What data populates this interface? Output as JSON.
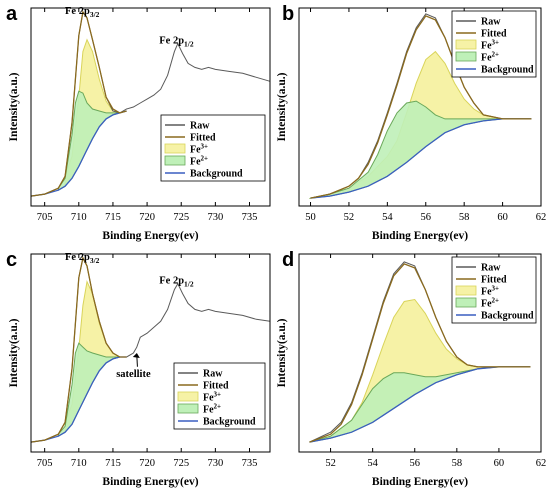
{
  "colors": {
    "raw": "#5a5a5a",
    "fitted": "#8a6a1e",
    "fe3": "#f6f2a6",
    "fe3_line": "#d9d45a",
    "fe2": "#bff0b8",
    "fe2_line": "#6aa85a",
    "background": "#3a5fc0",
    "axis": "#000000"
  },
  "chart_data": [
    {
      "panel": "a",
      "type": "line",
      "xlabel": "Binding Energy(ev)",
      "ylabel": "Intensity(a.u.)",
      "xlim": [
        703,
        738
      ],
      "x_ticks": [
        705,
        710,
        715,
        720,
        725,
        730,
        735
      ],
      "ylim": [
        0,
        1
      ],
      "legend": {
        "placement": "center-right",
        "entries": [
          {
            "key": "raw",
            "label": "Raw",
            "sup": ""
          },
          {
            "key": "fitted",
            "label": "Fitted",
            "sup": ""
          },
          {
            "key": "fe3",
            "label": "Fe",
            "sup": "3+"
          },
          {
            "key": "fe2",
            "label": "Fe",
            "sup": "2+"
          },
          {
            "key": "background",
            "label": "Background",
            "sup": ""
          }
        ]
      },
      "annotations": [
        {
          "text": "Fe 2p",
          "sub": "3/2",
          "x": 710.5,
          "y": 0.97
        },
        {
          "text": "Fe 2p",
          "sub": "1/2",
          "x": 724.3,
          "y": 0.82
        }
      ],
      "series": {
        "raw": {
          "x": [
            703,
            705,
            707,
            708,
            709,
            710,
            710.6,
            711.2,
            712,
            713,
            714,
            715,
            716,
            717,
            718,
            719,
            720,
            721,
            722,
            723,
            724,
            724.5,
            725.2,
            726,
            727,
            728,
            729,
            730,
            732,
            734,
            736,
            738
          ],
          "y": [
            0.05,
            0.06,
            0.09,
            0.15,
            0.42,
            0.86,
            0.98,
            0.95,
            0.84,
            0.7,
            0.55,
            0.48,
            0.47,
            0.49,
            0.5,
            0.52,
            0.54,
            0.56,
            0.59,
            0.66,
            0.78,
            0.82,
            0.77,
            0.72,
            0.7,
            0.69,
            0.7,
            0.69,
            0.68,
            0.67,
            0.65,
            0.63
          ]
        },
        "fitted": {
          "x": [
            703,
            705,
            707,
            708,
            709,
            710,
            710.6,
            711.2,
            712,
            713,
            714,
            715,
            716,
            717
          ],
          "y": [
            0.05,
            0.06,
            0.09,
            0.15,
            0.42,
            0.86,
            0.98,
            0.95,
            0.84,
            0.7,
            0.55,
            0.49,
            0.47,
            0.48
          ]
        },
        "fe3": {
          "x": [
            708,
            709,
            710,
            710.6,
            711.2,
            712,
            713,
            714,
            715,
            716
          ],
          "y": [
            0.15,
            0.25,
            0.55,
            0.78,
            0.84,
            0.78,
            0.64,
            0.53,
            0.48,
            0.47
          ]
        },
        "fe2": {
          "x": [
            707,
            708,
            709,
            709.5,
            710,
            710.6,
            711.2,
            712,
            713,
            714,
            715,
            716
          ],
          "y": [
            0.09,
            0.14,
            0.36,
            0.52,
            0.58,
            0.57,
            0.52,
            0.49,
            0.48,
            0.47,
            0.47,
            0.47
          ]
        },
        "background": {
          "x": [
            703,
            705,
            707,
            708,
            709,
            710,
            711,
            712,
            713,
            714,
            715,
            716,
            717
          ],
          "y": [
            0.05,
            0.06,
            0.08,
            0.1,
            0.14,
            0.2,
            0.27,
            0.34,
            0.4,
            0.44,
            0.46,
            0.47,
            0.48
          ]
        }
      }
    },
    {
      "panel": "b",
      "type": "line",
      "xlabel": "Binding Energy(ev)",
      "ylabel": "Intensity(a.u.)",
      "xlim": [
        49.4,
        62
      ],
      "x_ticks": [
        50,
        52,
        54,
        56,
        58,
        60,
        62
      ],
      "ylim": [
        0,
        1
      ],
      "legend": {
        "placement": "top-right",
        "entries": [
          {
            "key": "raw",
            "label": "Raw",
            "sup": ""
          },
          {
            "key": "fitted",
            "label": "Fitted",
            "sup": ""
          },
          {
            "key": "fe3",
            "label": "Fe",
            "sup": "3+"
          },
          {
            "key": "fe2",
            "label": "Fe",
            "sup": "2+"
          },
          {
            "key": "background",
            "label": "Background",
            "sup": ""
          }
        ]
      },
      "annotations": [],
      "series": {
        "raw": {
          "x": [
            50,
            51,
            52,
            52.5,
            53,
            53.5,
            54,
            54.5,
            55,
            55.5,
            56,
            56.5,
            57,
            57.5,
            58,
            58.5,
            59,
            60,
            61,
            61.5
          ],
          "y": [
            0.04,
            0.06,
            0.1,
            0.14,
            0.22,
            0.33,
            0.47,
            0.62,
            0.78,
            0.9,
            0.97,
            0.95,
            0.85,
            0.72,
            0.6,
            0.52,
            0.46,
            0.44,
            0.44,
            0.44
          ]
        },
        "fitted": {
          "x": [
            50,
            51,
            52,
            52.5,
            53,
            53.5,
            54,
            54.5,
            55,
            55.5,
            56,
            56.5,
            57,
            57.5,
            58,
            58.5,
            59,
            60,
            61,
            61.5
          ],
          "y": [
            0.04,
            0.06,
            0.1,
            0.14,
            0.21,
            0.32,
            0.46,
            0.61,
            0.77,
            0.89,
            0.96,
            0.94,
            0.85,
            0.72,
            0.6,
            0.52,
            0.46,
            0.44,
            0.44,
            0.44
          ]
        },
        "fe3": {
          "x": [
            50,
            51,
            52,
            53,
            54,
            54.5,
            55,
            55.5,
            56,
            56.5,
            57,
            57.5,
            58,
            58.5,
            59,
            60,
            61,
            61.5
          ],
          "y": [
            0.04,
            0.06,
            0.09,
            0.15,
            0.25,
            0.33,
            0.47,
            0.62,
            0.74,
            0.78,
            0.72,
            0.62,
            0.54,
            0.49,
            0.46,
            0.44,
            0.44,
            0.44
          ]
        },
        "fe2": {
          "x": [
            50,
            51,
            52,
            53,
            53.5,
            54,
            54.5,
            55,
            55.5,
            56,
            56.5,
            57,
            57.5,
            58,
            59,
            60,
            61,
            61.5
          ],
          "y": [
            0.04,
            0.06,
            0.09,
            0.17,
            0.26,
            0.38,
            0.47,
            0.52,
            0.53,
            0.5,
            0.46,
            0.44,
            0.44,
            0.44,
            0.44,
            0.44,
            0.44,
            0.44
          ]
        },
        "background": {
          "x": [
            50,
            51,
            52,
            53,
            54,
            55,
            56,
            57,
            58,
            59,
            60,
            61,
            61.5
          ],
          "y": [
            0.04,
            0.05,
            0.07,
            0.1,
            0.15,
            0.22,
            0.3,
            0.37,
            0.41,
            0.43,
            0.44,
            0.44,
            0.44
          ]
        }
      }
    },
    {
      "panel": "c",
      "type": "line",
      "xlabel": "Binding Energy(ev)",
      "ylabel": "Intensity(a.u.)",
      "xlim": [
        703,
        738
      ],
      "x_ticks": [
        705,
        710,
        715,
        720,
        725,
        730,
        735
      ],
      "ylim": [
        0,
        1
      ],
      "legend": {
        "placement": "bottom-right",
        "entries": [
          {
            "key": "raw",
            "label": "Raw",
            "sup": ""
          },
          {
            "key": "fitted",
            "label": "Fitted",
            "sup": ""
          },
          {
            "key": "fe3",
            "label": "Fe",
            "sup": "3+"
          },
          {
            "key": "fe2",
            "label": "Fe",
            "sup": "2+"
          },
          {
            "key": "background",
            "label": "Background",
            "sup": ""
          }
        ]
      },
      "annotations": [
        {
          "text": "Fe 2p",
          "sub": "3/2",
          "x": 710.5,
          "y": 0.97
        },
        {
          "text": "Fe 2p",
          "sub": "1/2",
          "x": 724.3,
          "y": 0.85
        },
        {
          "text": "satellite",
          "sub": "",
          "x": 718.0,
          "y": 0.38,
          "arrow_to": [
            718.5,
            0.5
          ]
        }
      ],
      "series": {
        "raw": {
          "x": [
            703,
            705,
            707,
            708,
            709,
            710,
            710.6,
            711.2,
            712,
            713,
            714,
            715,
            716,
            717,
            718,
            718.5,
            719,
            720,
            721,
            722,
            723,
            724,
            724.5,
            725.2,
            726,
            727,
            728,
            729,
            730,
            732,
            734,
            736,
            738
          ],
          "y": [
            0.05,
            0.06,
            0.09,
            0.15,
            0.42,
            0.88,
            0.98,
            0.94,
            0.8,
            0.66,
            0.55,
            0.5,
            0.48,
            0.48,
            0.5,
            0.53,
            0.58,
            0.6,
            0.63,
            0.66,
            0.72,
            0.82,
            0.85,
            0.8,
            0.75,
            0.72,
            0.71,
            0.72,
            0.71,
            0.7,
            0.69,
            0.67,
            0.66
          ]
        },
        "fitted": {
          "x": [
            703,
            705,
            707,
            708,
            709,
            710,
            710.6,
            711.2,
            712,
            713,
            714,
            715,
            716,
            717
          ],
          "y": [
            0.05,
            0.06,
            0.09,
            0.15,
            0.42,
            0.88,
            0.98,
            0.94,
            0.8,
            0.66,
            0.55,
            0.5,
            0.48,
            0.48
          ]
        },
        "fe3": {
          "x": [
            708,
            709,
            710,
            710.6,
            711.2,
            712,
            713,
            714,
            715,
            716
          ],
          "y": [
            0.15,
            0.24,
            0.52,
            0.74,
            0.86,
            0.8,
            0.65,
            0.55,
            0.5,
            0.48
          ]
        },
        "fe2": {
          "x": [
            707,
            708,
            709,
            709.5,
            710,
            710.6,
            711.2,
            712,
            713,
            714,
            715,
            716
          ],
          "y": [
            0.09,
            0.13,
            0.34,
            0.5,
            0.55,
            0.53,
            0.51,
            0.5,
            0.49,
            0.48,
            0.48,
            0.48
          ]
        },
        "background": {
          "x": [
            703,
            705,
            707,
            708,
            709,
            710,
            711,
            712,
            713,
            714,
            715,
            716,
            717
          ],
          "y": [
            0.05,
            0.06,
            0.08,
            0.1,
            0.14,
            0.21,
            0.28,
            0.35,
            0.41,
            0.45,
            0.47,
            0.48,
            0.48
          ]
        }
      }
    },
    {
      "panel": "d",
      "type": "line",
      "xlabel": "Binding Energy(ev)",
      "ylabel": "Intensity(a.u.)",
      "xlim": [
        50.5,
        62
      ],
      "x_ticks": [
        52,
        54,
        56,
        58,
        60,
        62
      ],
      "ylim": [
        0,
        1
      ],
      "legend": {
        "placement": "top-right",
        "entries": [
          {
            "key": "raw",
            "label": "Raw",
            "sup": ""
          },
          {
            "key": "fitted",
            "label": "Fitted",
            "sup": ""
          },
          {
            "key": "fe3",
            "label": "Fe",
            "sup": "3+"
          },
          {
            "key": "fe2",
            "label": "Fe",
            "sup": "2+"
          },
          {
            "key": "background",
            "label": "Background",
            "sup": ""
          }
        ]
      },
      "annotations": [],
      "series": {
        "raw": {
          "x": [
            51,
            52,
            52.5,
            53,
            53.5,
            54,
            54.5,
            55,
            55.5,
            56,
            56.5,
            57,
            57.5,
            58,
            58.5,
            59,
            59.5,
            60,
            61,
            61.5
          ],
          "y": [
            0.05,
            0.1,
            0.15,
            0.25,
            0.4,
            0.58,
            0.76,
            0.9,
            0.96,
            0.94,
            0.82,
            0.68,
            0.56,
            0.48,
            0.44,
            0.43,
            0.43,
            0.43,
            0.43,
            0.43
          ]
        },
        "fitted": {
          "x": [
            51,
            52,
            52.5,
            53,
            53.5,
            54,
            54.5,
            55,
            55.5,
            56,
            56.5,
            57,
            57.5,
            58,
            58.5,
            59,
            59.5,
            60,
            61,
            61.5
          ],
          "y": [
            0.05,
            0.09,
            0.14,
            0.24,
            0.39,
            0.57,
            0.75,
            0.89,
            0.95,
            0.93,
            0.82,
            0.68,
            0.56,
            0.48,
            0.44,
            0.43,
            0.43,
            0.43,
            0.43,
            0.43
          ]
        },
        "fe3": {
          "x": [
            51,
            52,
            53,
            53.5,
            54,
            54.5,
            55,
            55.5,
            56,
            56.5,
            57,
            57.5,
            58,
            58.5,
            59,
            60,
            61,
            61.5
          ],
          "y": [
            0.05,
            0.08,
            0.16,
            0.25,
            0.39,
            0.54,
            0.68,
            0.76,
            0.77,
            0.7,
            0.6,
            0.52,
            0.47,
            0.44,
            0.43,
            0.43,
            0.43,
            0.43
          ]
        },
        "fe2": {
          "x": [
            51,
            52,
            53,
            53.5,
            54,
            54.5,
            55,
            55.5,
            56,
            56.5,
            57,
            58,
            59,
            60,
            61,
            61.5
          ],
          "y": [
            0.05,
            0.08,
            0.16,
            0.24,
            0.32,
            0.37,
            0.4,
            0.4,
            0.39,
            0.38,
            0.38,
            0.4,
            0.42,
            0.43,
            0.43,
            0.43
          ]
        },
        "background": {
          "x": [
            51,
            52,
            53,
            54,
            55,
            56,
            57,
            58,
            59,
            60,
            61,
            61.5
          ],
          "y": [
            0.05,
            0.07,
            0.1,
            0.15,
            0.22,
            0.29,
            0.35,
            0.39,
            0.42,
            0.43,
            0.43,
            0.43
          ]
        }
      }
    }
  ]
}
